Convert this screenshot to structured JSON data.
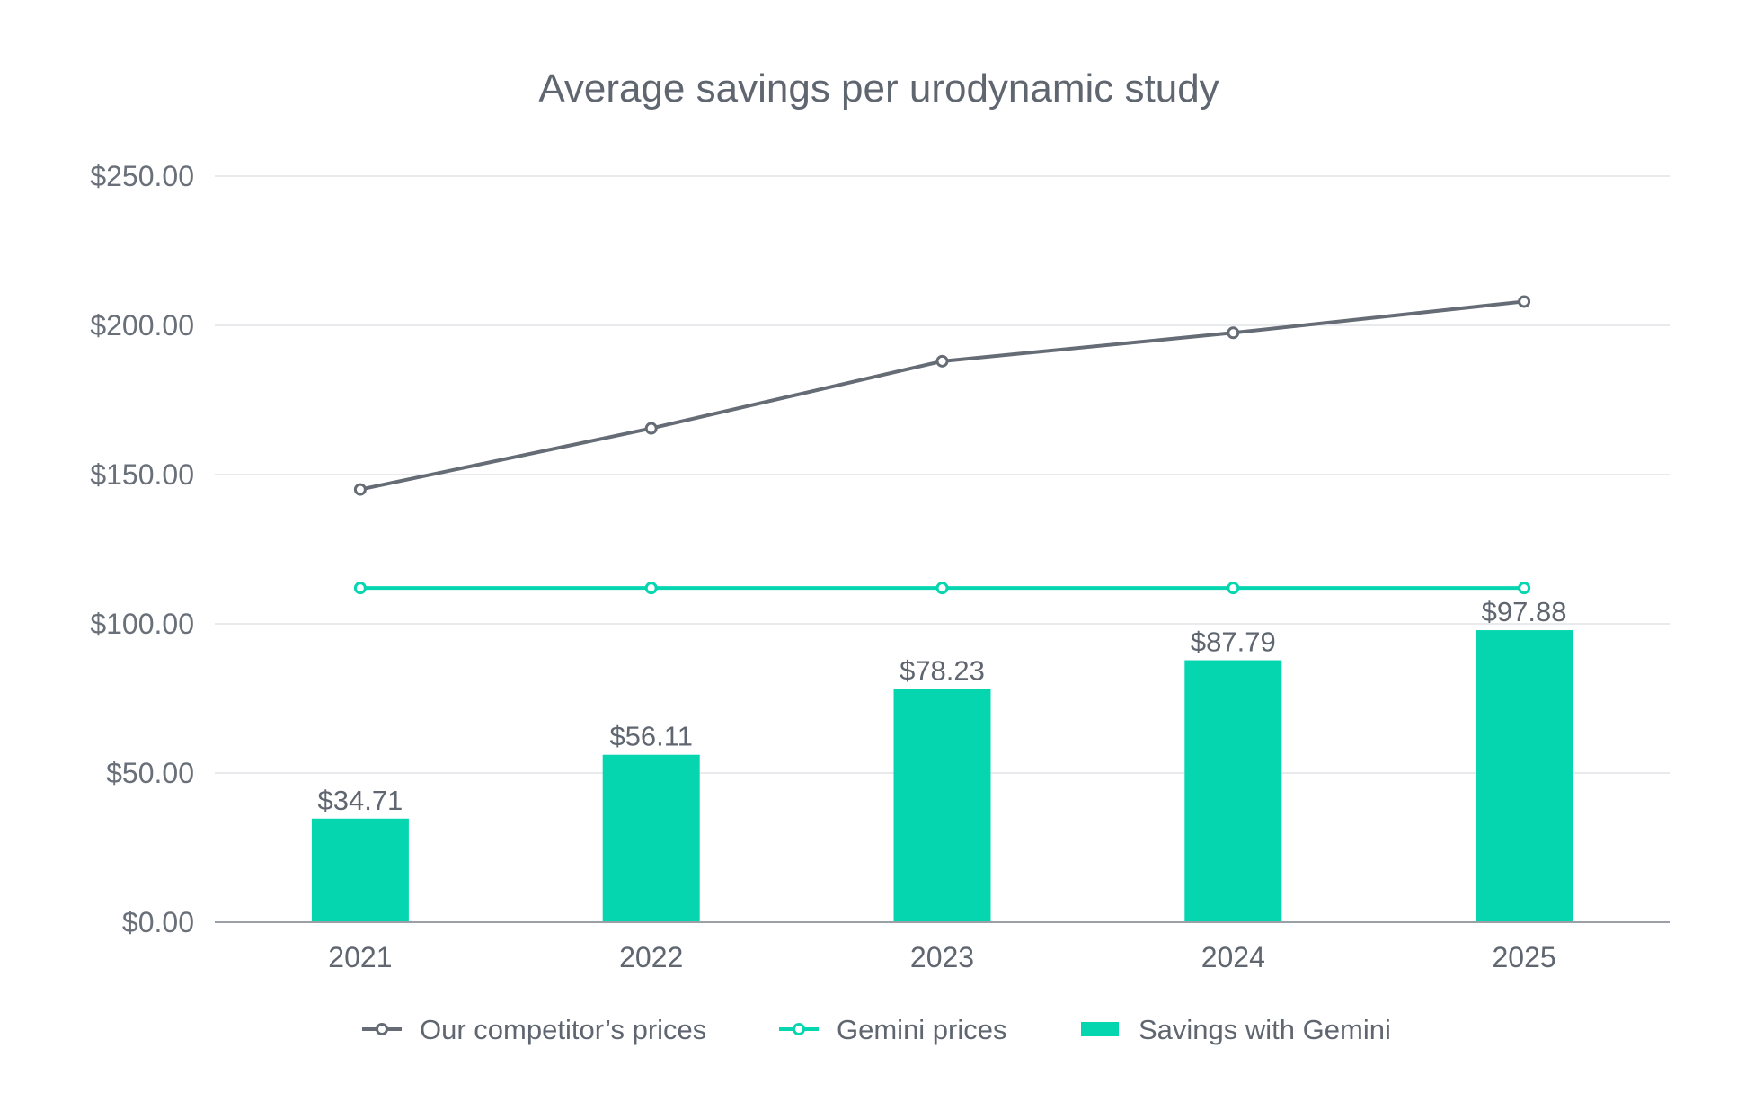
{
  "chart_data": {
    "type": "bar",
    "title": "Average savings per urodynamic study",
    "xlabel": "",
    "ylabel": "",
    "categories": [
      "2021",
      "2022",
      "2023",
      "2024",
      "2025"
    ],
    "ylim": [
      0,
      250
    ],
    "y_ticks": [
      0,
      50,
      100,
      150,
      200,
      250
    ],
    "y_tick_labels": [
      "$0.00",
      "$50.00",
      "$100.00",
      "$150.00",
      "$200.00",
      "$250.00"
    ],
    "grid": true,
    "legend_position": "bottom",
    "series": [
      {
        "name": "Our competitor’s prices",
        "type": "line",
        "color": "#666c75",
        "values": [
          145,
          165.5,
          188,
          197.5,
          208
        ]
      },
      {
        "name": "Gemini prices",
        "type": "line",
        "color": "#06d6b0",
        "values": [
          112,
          112,
          112,
          112,
          112
        ]
      },
      {
        "name": "Savings with Gemini",
        "type": "bar",
        "color": "#06d6b0",
        "values": [
          34.71,
          56.11,
          78.23,
          87.79,
          97.88
        ],
        "labels": [
          "$34.71",
          "$56.11",
          "$78.23",
          "$87.79",
          "$97.88"
        ]
      }
    ]
  }
}
